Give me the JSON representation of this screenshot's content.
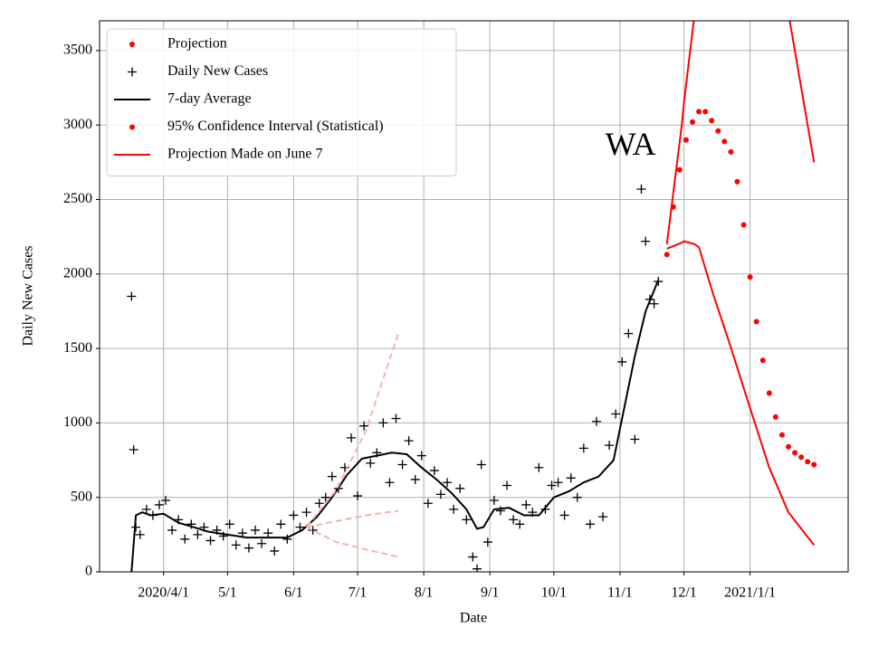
{
  "chart_data": {
    "type": "line",
    "xlabel": "Date",
    "ylabel": "Daily New Cases",
    "annotation": {
      "text": "WA",
      "x": "2020-11-06",
      "y": 2850
    },
    "xlim": [
      "2020-03-02",
      "2021-02-16"
    ],
    "ylim": [
      0,
      3700
    ],
    "yticks": [
      0,
      500,
      1000,
      1500,
      2000,
      2500,
      3000,
      3500
    ],
    "xticks": [
      {
        "value": "2020-04-01",
        "label": "2020/4/1"
      },
      {
        "value": "2020-05-01",
        "label": "5/1"
      },
      {
        "value": "2020-06-01",
        "label": "6/1"
      },
      {
        "value": "2020-07-01",
        "label": "7/1"
      },
      {
        "value": "2020-08-01",
        "label": "8/1"
      },
      {
        "value": "2020-09-01",
        "label": "9/1"
      },
      {
        "value": "2020-10-01",
        "label": "10/1"
      },
      {
        "value": "2020-11-01",
        "label": "11/1"
      },
      {
        "value": "2020-12-01",
        "label": "12/1"
      },
      {
        "value": "2021-01-01",
        "label": "2021/1/1"
      }
    ],
    "grid": true,
    "legend": "upper left",
    "series": [
      {
        "name": "Projection",
        "style": "dot",
        "color": "#ff0000",
        "x": [
          "2020-11-23",
          "2020-11-26",
          "2020-11-29",
          "2020-12-02",
          "2020-12-05",
          "2020-12-08",
          "2020-12-11",
          "2020-12-14",
          "2020-12-17",
          "2020-12-20",
          "2020-12-23",
          "2020-12-26",
          "2020-12-29",
          "2021-01-01",
          "2021-01-04",
          "2021-01-07",
          "2021-01-10",
          "2021-01-13",
          "2021-01-16",
          "2021-01-19",
          "2021-01-22",
          "2021-01-25",
          "2021-01-28",
          "2021-01-31"
        ],
        "values": [
          2130,
          2450,
          2700,
          2900,
          3020,
          3090,
          3090,
          3030,
          2960,
          2890,
          2820,
          2620,
          2330,
          1980,
          1680,
          1420,
          1200,
          1040,
          920,
          840,
          800,
          770,
          740,
          720
        ]
      },
      {
        "name": "Daily New Cases",
        "style": "plus",
        "color": "#000000",
        "x": [
          "2020-03-17",
          "2020-03-18",
          "2020-03-19",
          "2020-03-21",
          "2020-03-24",
          "2020-03-27",
          "2020-03-30",
          "2020-04-02",
          "2020-04-05",
          "2020-04-08",
          "2020-04-11",
          "2020-04-14",
          "2020-04-17",
          "2020-04-20",
          "2020-04-23",
          "2020-04-26",
          "2020-04-29",
          "2020-05-02",
          "2020-05-05",
          "2020-05-08",
          "2020-05-11",
          "2020-05-14",
          "2020-05-17",
          "2020-05-20",
          "2020-05-23",
          "2020-05-26",
          "2020-05-29",
          "2020-06-01",
          "2020-06-04",
          "2020-06-07",
          "2020-06-10",
          "2020-06-13",
          "2020-06-16",
          "2020-06-19",
          "2020-06-22",
          "2020-06-25",
          "2020-06-28",
          "2020-07-01",
          "2020-07-04",
          "2020-07-07",
          "2020-07-10",
          "2020-07-13",
          "2020-07-16",
          "2020-07-19",
          "2020-07-22",
          "2020-07-25",
          "2020-07-28",
          "2020-07-31",
          "2020-08-03",
          "2020-08-06",
          "2020-08-09",
          "2020-08-12",
          "2020-08-15",
          "2020-08-18",
          "2020-08-21",
          "2020-08-24",
          "2020-08-26",
          "2020-08-28",
          "2020-08-31",
          "2020-09-03",
          "2020-09-06",
          "2020-09-09",
          "2020-09-12",
          "2020-09-15",
          "2020-09-18",
          "2020-09-21",
          "2020-09-24",
          "2020-09-27",
          "2020-09-30",
          "2020-10-03",
          "2020-10-06",
          "2020-10-09",
          "2020-10-12",
          "2020-10-15",
          "2020-10-18",
          "2020-10-21",
          "2020-10-24",
          "2020-10-27",
          "2020-10-30",
          "2020-11-02",
          "2020-11-05",
          "2020-11-08",
          "2020-11-11",
          "2020-11-13",
          "2020-11-15",
          "2020-11-17",
          "2020-11-19"
        ],
        "values": [
          1850,
          820,
          300,
          250,
          420,
          380,
          450,
          480,
          280,
          350,
          220,
          320,
          250,
          300,
          210,
          280,
          240,
          320,
          180,
          260,
          160,
          280,
          190,
          260,
          140,
          320,
          220,
          380,
          300,
          400,
          280,
          460,
          500,
          640,
          560,
          700,
          900,
          510,
          980,
          730,
          800,
          1000,
          600,
          1030,
          720,
          880,
          620,
          780,
          460,
          680,
          520,
          600,
          420,
          560,
          350,
          100,
          20,
          720,
          200,
          480,
          410,
          580,
          350,
          320,
          450,
          400,
          700,
          420,
          580,
          600,
          380,
          630,
          500,
          830,
          320,
          1010,
          370,
          850,
          1060,
          1410,
          1600,
          890,
          2570,
          2220,
          1830,
          1800,
          1950
        ]
      },
      {
        "name": "7-day Average",
        "style": "line",
        "color": "#000000",
        "x": [
          "2020-03-17",
          "2020-03-19",
          "2020-03-22",
          "2020-03-26",
          "2020-04-01",
          "2020-04-08",
          "2020-04-15",
          "2020-04-22",
          "2020-05-01",
          "2020-05-10",
          "2020-05-20",
          "2020-05-29",
          "2020-06-05",
          "2020-06-12",
          "2020-06-19",
          "2020-06-26",
          "2020-07-03",
          "2020-07-10",
          "2020-07-17",
          "2020-07-24",
          "2020-07-31",
          "2020-08-07",
          "2020-08-14",
          "2020-08-21",
          "2020-08-26",
          "2020-08-29",
          "2020-09-03",
          "2020-09-10",
          "2020-09-17",
          "2020-09-24",
          "2020-10-01",
          "2020-10-08",
          "2020-10-15",
          "2020-10-22",
          "2020-10-29",
          "2020-11-03",
          "2020-11-08",
          "2020-11-13",
          "2020-11-19"
        ],
        "values": [
          0,
          380,
          400,
          380,
          390,
          330,
          300,
          270,
          250,
          230,
          230,
          230,
          280,
          370,
          500,
          650,
          760,
          780,
          800,
          790,
          700,
          620,
          530,
          420,
          290,
          300,
          420,
          430,
          380,
          380,
          500,
          540,
          600,
          640,
          750,
          1100,
          1450,
          1750,
          1960
        ]
      },
      {
        "name": "95% Confidence Interval (Statistical)",
        "style": "dot",
        "color": "#ff0000",
        "x": [
          "2020-11-23",
          "2020-11-30",
          "2020-12-01",
          "2020-12-06",
          "2020-12-08",
          "2020-12-15",
          "2020-12-22",
          "2021-01-01",
          "2021-01-10",
          "2021-01-19",
          "2021-01-31"
        ],
        "lower": [
          2170,
          2210,
          2220,
          2200,
          2180,
          1850,
          1550,
          1100,
          700,
          400,
          180
        ],
        "upper": [
          2200,
          3000,
          3150,
          3750,
          null,
          null,
          null,
          null,
          null,
          3750,
          2750
        ]
      },
      {
        "name": "Projection Made on June 7",
        "style": "line",
        "color": "#ff0000",
        "line_color": "#f7b3ad",
        "x": [
          "2020-06-07",
          "2020-06-21",
          "2020-07-05",
          "2020-07-20"
        ],
        "upper": [
          300,
          550,
          950,
          1600
        ],
        "values": [
          300,
          340,
          380,
          410
        ],
        "lower": [
          300,
          200,
          150,
          100
        ]
      }
    ]
  }
}
